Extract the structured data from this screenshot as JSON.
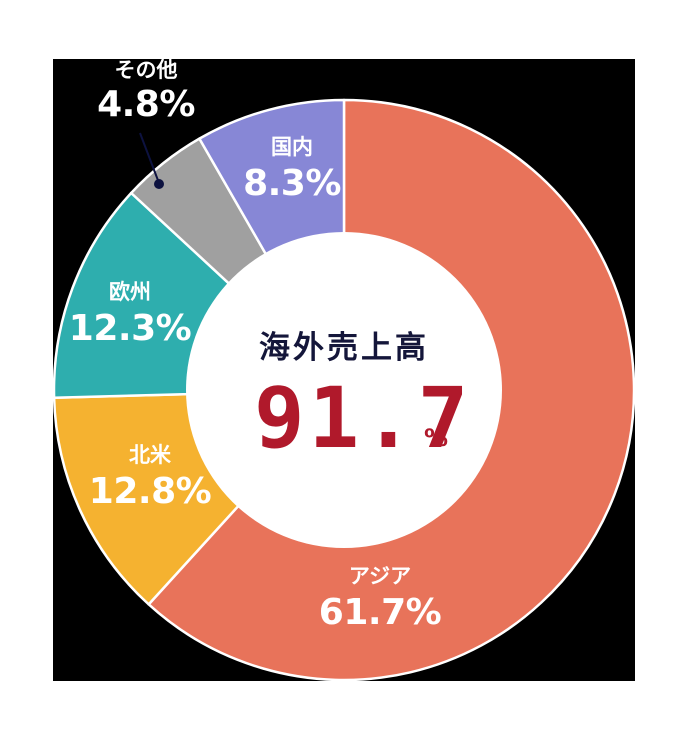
{
  "chart_data": {
    "type": "pie",
    "subtype": "donut",
    "title": "海外売上高",
    "center_value": "91.7",
    "center_unit": "%",
    "categories": [
      "アジア",
      "北米",
      "欧州",
      "その他",
      "国内"
    ],
    "values": [
      61.7,
      12.8,
      12.3,
      4.8,
      8.3
    ],
    "labels": [
      "61.7%",
      "12.8%",
      "12.3%",
      "4.8%",
      "8.3%"
    ],
    "colors": [
      "#E8735A",
      "#F5B230",
      "#2EAEAE",
      "#A0A0A0",
      "#8787D6"
    ],
    "start_angle": "12 o'clock",
    "direction": "clockwise",
    "annotations": [
      {
        "category": "その他",
        "type": "leader-line",
        "label_outside": true
      }
    ],
    "legend": "none (labels on segments)"
  },
  "center": {
    "title": "海外売上高",
    "value": "91.7",
    "unit": "%"
  },
  "segments": [
    {
      "name": "アジア",
      "pct": "61.7%"
    },
    {
      "name": "北米",
      "pct": "12.8%"
    },
    {
      "name": "欧州",
      "pct": "12.3%"
    },
    {
      "name": "その他",
      "pct": "4.8%"
    },
    {
      "name": "国内",
      "pct": "8.3%"
    }
  ]
}
